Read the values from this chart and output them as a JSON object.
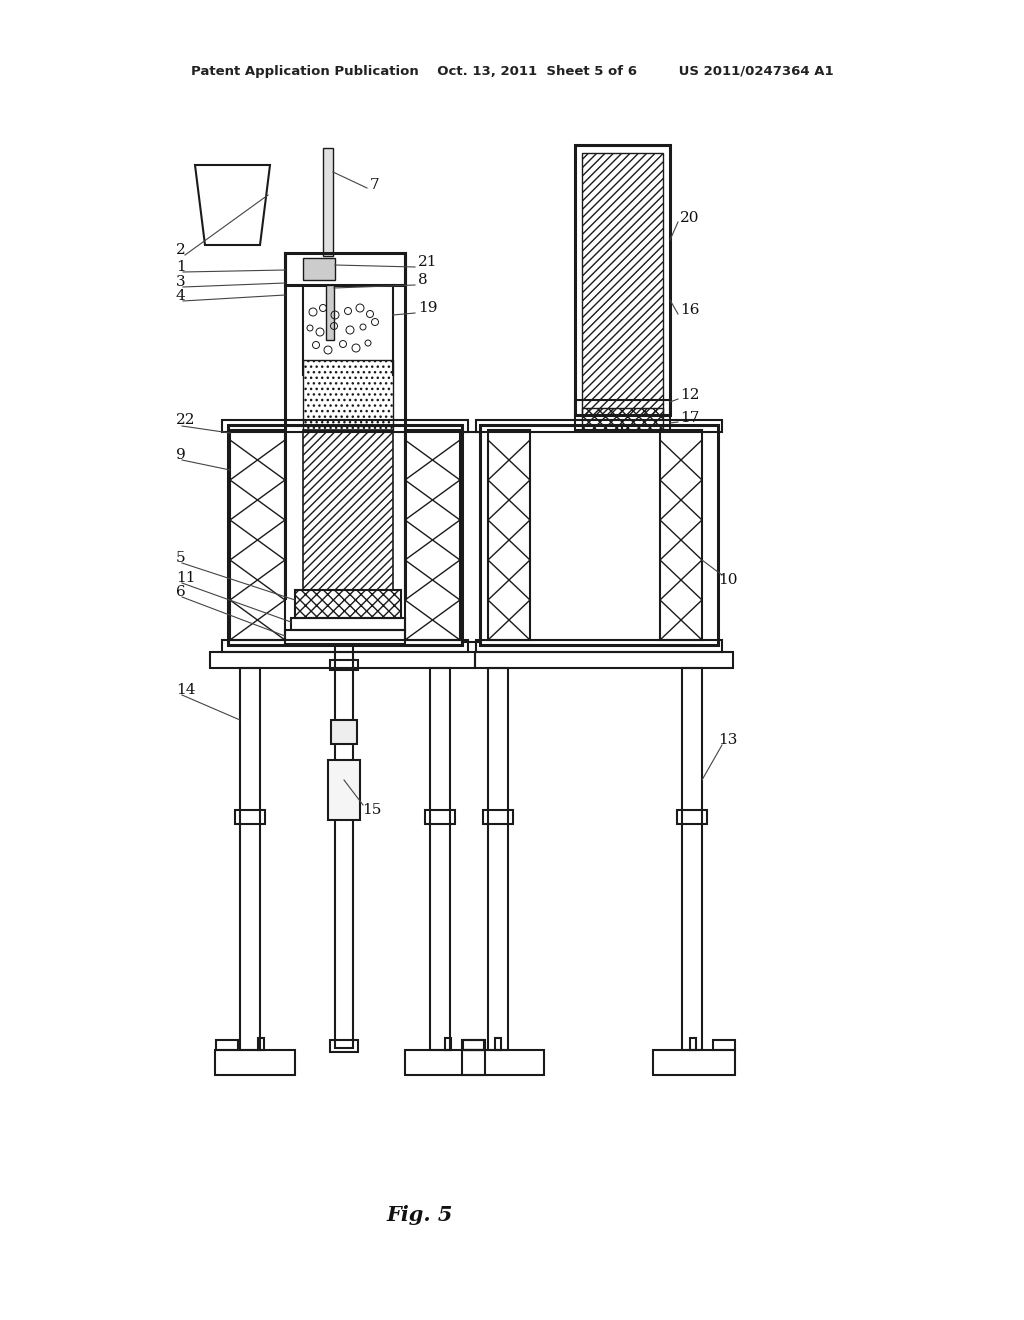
{
  "bg_color": "#ffffff",
  "line_color": "#1a1a1a",
  "header_text": "Patent Application Publication    Oct. 13, 2011  Sheet 5 of 6         US 2011/0247364 A1",
  "figure_label": "Fig. 5",
  "label_fs": 11
}
